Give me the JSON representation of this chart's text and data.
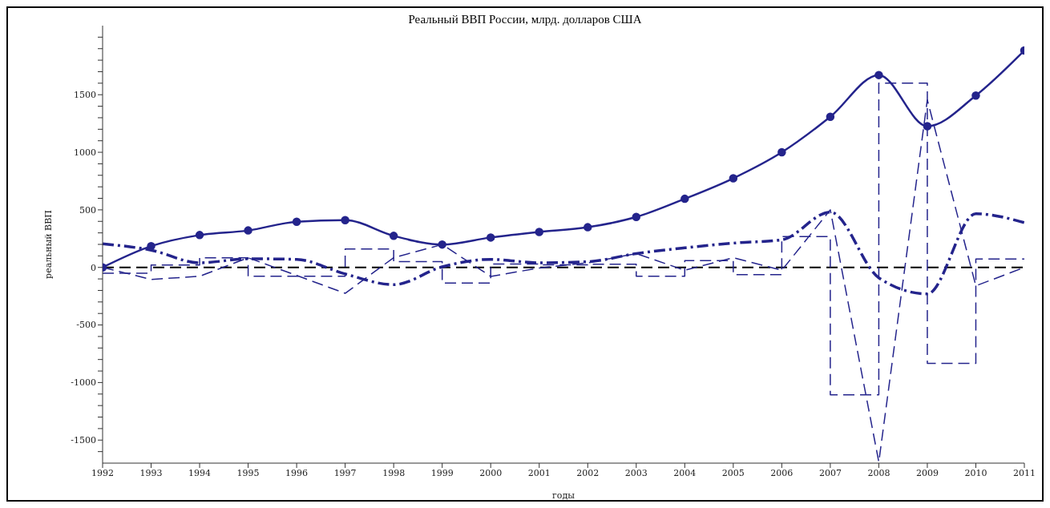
{
  "chart_data": {
    "type": "line",
    "title": "Реальный ВВП России, млрд. долларов США",
    "xlabel": "годы",
    "ylabel": "реальный ВВП",
    "x": [
      1992,
      1993,
      1994,
      1995,
      1996,
      1997,
      1998,
      1999,
      2000,
      2001,
      2002,
      2003,
      2004,
      2005,
      2006,
      2007,
      2008,
      2009,
      2010,
      2011
    ],
    "series": [
      {
        "color": "#24248c",
        "marker": "circle",
        "line_style": "solid",
        "values": [
          0,
          185,
          281,
          321,
          397,
          411,
          274,
          199,
          260,
          308,
          349,
          438,
          596,
          774,
          1000,
          1308,
          1671,
          1226,
          1493,
          1884
        ]
      },
      {
        "type": "step",
        "color": "#24248c",
        "line_style": "dashed",
        "values": [
          -51,
          20,
          84,
          -77,
          -77,
          160,
          50,
          -135,
          30,
          23,
          28,
          -76,
          59,
          -62,
          268,
          -1106,
          1600,
          -834,
          73,
          73
        ]
      },
      {
        "color": "#24248c",
        "line_style": "dashed",
        "values": [
          0,
          -104,
          -77,
          84,
          -70,
          -225,
          85,
          199,
          -78,
          -5,
          40,
          120,
          -25,
          85,
          -25,
          500,
          -1690,
          1455,
          -160,
          0
        ]
      },
      {
        "color": "#24248c",
        "line_style": "dotted",
        "values": [
          205,
          150,
          40,
          75,
          70,
          -57,
          -150,
          5,
          70,
          40,
          50,
          120,
          170,
          211,
          240,
          480,
          -90,
          -230,
          466,
          389
        ]
      }
    ],
    "xlim": [
      1992,
      2011
    ],
    "xticks": [
      1992,
      1993,
      1994,
      1995,
      1996,
      1997,
      1998,
      1999,
      2000,
      2001,
      2002,
      2003,
      2004,
      2005,
      2006,
      2007,
      2008,
      2009,
      2010,
      2011
    ],
    "ylim": [
      -1700,
      2100
    ],
    "yticks": [
      {
        "value": -1600,
        "label": null
      },
      -1500,
      {
        "value": -1400,
        "label": null
      },
      {
        "value": -1300,
        "label": null
      },
      {
        "value": -1200,
        "label": null
      },
      {
        "value": -1100,
        "label": null
      },
      -1000,
      {
        "value": -900,
        "label": null
      },
      {
        "value": -800,
        "label": null
      },
      {
        "value": -700,
        "label": null
      },
      {
        "value": -600,
        "label": null
      },
      -500,
      {
        "value": -400,
        "label": null
      },
      {
        "value": -300,
        "label": null
      },
      {
        "value": -200,
        "label": null
      },
      {
        "value": -100,
        "label": null
      },
      0,
      {
        "value": 100,
        "label": null
      },
      {
        "value": 200,
        "label": null
      },
      {
        "value": 300,
        "label": null
      },
      {
        "value": 400,
        "label": null
      },
      500,
      {
        "value": 600,
        "label": null
      },
      {
        "value": 700,
        "label": null
      },
      {
        "value": 800,
        "label": null
      },
      {
        "value": 900,
        "label": null
      },
      1000,
      {
        "value": 1100,
        "label": null
      },
      {
        "value": 1200,
        "label": null
      },
      {
        "value": 1300,
        "label": null
      },
      {
        "value": 1400,
        "label": null
      },
      1500,
      {
        "value": 1600,
        "label": null
      },
      {
        "value": 1700,
        "label": null
      },
      {
        "value": 1800,
        "label": null
      },
      {
        "value": 1900,
        "label": null
      },
      {
        "value": 2000,
        "label": null
      }
    ],
    "ref_lines": [
      {
        "axis": "y",
        "value": 0,
        "color": "#000000",
        "line_style": "dashed"
      }
    ],
    "marker": "none"
  }
}
